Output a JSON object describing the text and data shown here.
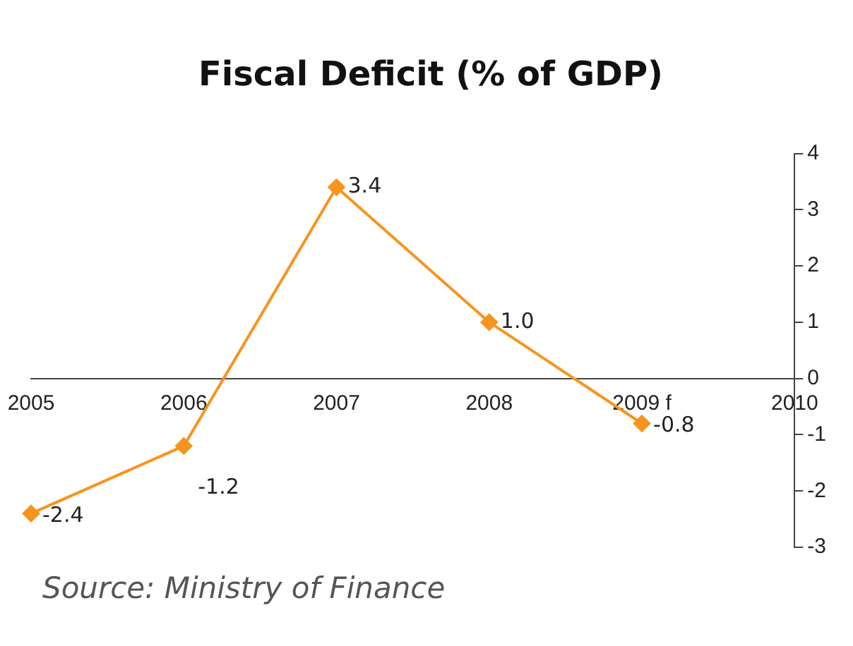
{
  "chart_data": {
    "type": "line",
    "title": "Fiscal Deficit (% of GDP)",
    "categories": [
      "2005",
      "2006",
      "2007",
      "2008",
      "2009 f",
      "2010"
    ],
    "series": [
      {
        "color": "#f7941d",
        "values": [
          -2.4,
          -1.2,
          3.4,
          1.0,
          -0.8,
          null
        ],
        "value_labels": [
          "-2.4",
          "-1.2",
          "3.4",
          "1.0",
          "-0.8",
          null
        ]
      }
    ],
    "ylim": [
      -3,
      4
    ],
    "yticks": [
      -3,
      -2,
      -1,
      0,
      1,
      2,
      3,
      4
    ],
    "grid": false,
    "legend": false,
    "marker": "diamond",
    "line_style": "solid",
    "annotations": [
      "Source: Ministry of Finance"
    ]
  }
}
